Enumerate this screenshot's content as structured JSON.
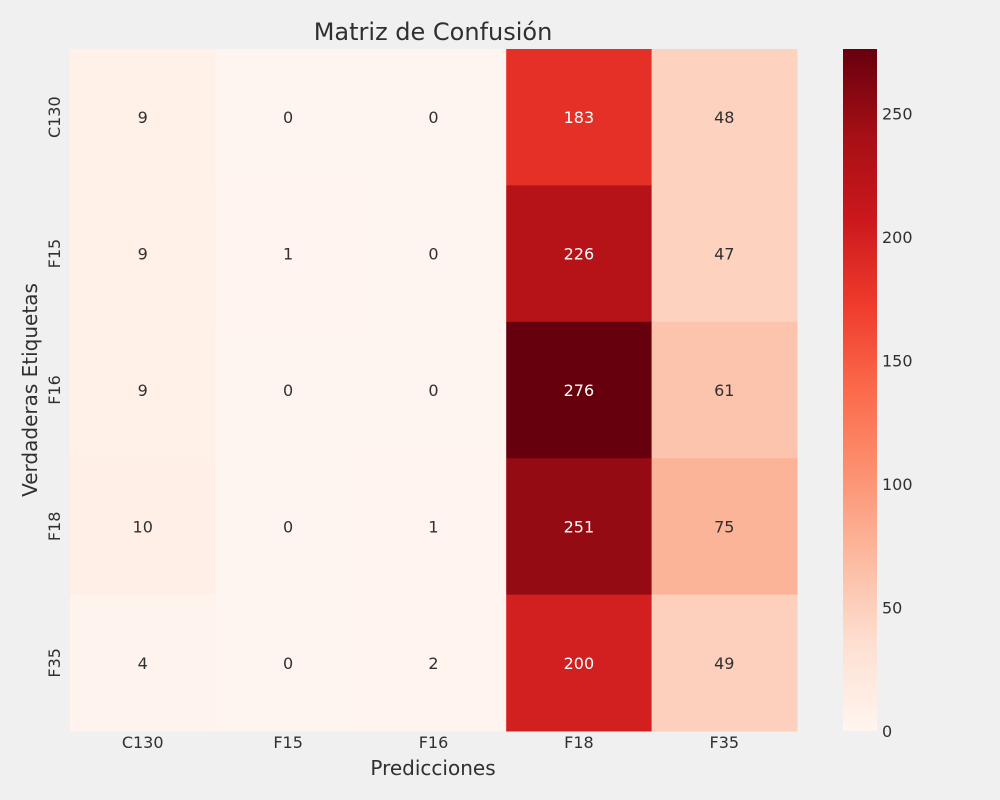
{
  "chart_data": {
    "type": "heatmap",
    "title": "Matriz de Confusión",
    "xlabel": "Predicciones",
    "ylabel": "Verdaderas Etiquetas",
    "x_categories": [
      "C130",
      "F15",
      "F16",
      "F18",
      "F35"
    ],
    "y_categories": [
      "C130",
      "F15",
      "F16",
      "F18",
      "F35"
    ],
    "values": [
      [
        9,
        0,
        0,
        183,
        48
      ],
      [
        9,
        1,
        0,
        226,
        47
      ],
      [
        9,
        0,
        0,
        276,
        61
      ],
      [
        10,
        0,
        1,
        251,
        75
      ],
      [
        4,
        0,
        2,
        200,
        49
      ]
    ],
    "colormap": "Reds",
    "vmin": 0,
    "vmax": 276,
    "colorbar_ticks": [
      0,
      50,
      100,
      150,
      200,
      250
    ],
    "colorbar_labels": [
      "0",
      "50",
      "100",
      "150",
      "200",
      "250"
    ],
    "colors": {
      "background": "#f0f0f0",
      "text_dark": "#303030",
      "text_light": "#ffffff"
    }
  }
}
